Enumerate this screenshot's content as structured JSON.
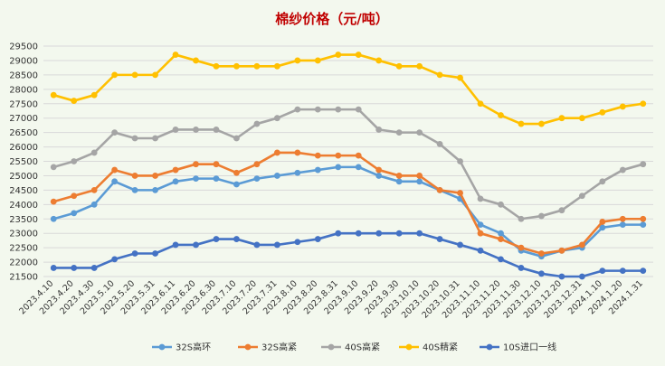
{
  "chart_data": {
    "type": "line",
    "title": "棉纱价格（元/吨）",
    "xlabel": "",
    "ylabel": "",
    "ylim": [
      21500,
      29500
    ],
    "y_ticks": [
      21500,
      22000,
      22500,
      23000,
      23500,
      24000,
      24500,
      25000,
      25500,
      26000,
      26500,
      27000,
      27500,
      28000,
      28500,
      29000,
      29500
    ],
    "grid": true,
    "legend_position": "bottom",
    "categories": [
      "2023.4.10",
      "2023.4.20",
      "2023.4.30",
      "2023.5.10",
      "2023.5.20",
      "2023.5.31",
      "2023.6.11",
      "2023.6.20",
      "2023.6.30",
      "2023.7.10",
      "2023.7.20",
      "2023.7.31",
      "2023.8.10",
      "2023.8.20",
      "2023.8.31",
      "2023.9.10",
      "2023.9.20",
      "2023.9.30",
      "2023.10.10",
      "2023.10.20",
      "2023.10.31",
      "2023.11.10",
      "2023.11.20",
      "2023.11.30",
      "2023.12.10",
      "2023.12.20",
      "2023.12.31",
      "2024.1.10",
      "2024.1.20",
      "2024.1.31"
    ],
    "series": [
      {
        "name": "32S高环",
        "color": "#5b9bd5",
        "values": [
          23500,
          23700,
          24000,
          24800,
          24500,
          24500,
          24800,
          24900,
          24900,
          24700,
          24900,
          25000,
          25100,
          25200,
          25300,
          25300,
          25000,
          24800,
          24800,
          24500,
          24200,
          23300,
          23000,
          22400,
          22200,
          22400,
          22500,
          23200,
          23300,
          23300
        ]
      },
      {
        "name": "32S高紧",
        "color": "#ed7d31",
        "values": [
          24100,
          24300,
          24500,
          25200,
          25000,
          25000,
          25200,
          25400,
          25400,
          25100,
          25400,
          25800,
          25800,
          25700,
          25700,
          25700,
          25200,
          25000,
          25000,
          24500,
          24400,
          23000,
          22800,
          22500,
          22300,
          22400,
          22600,
          23400,
          23500,
          23500
        ]
      },
      {
        "name": "40S高紧",
        "color": "#a5a5a5",
        "values": [
          25300,
          25500,
          25800,
          26500,
          26300,
          26300,
          26600,
          26600,
          26600,
          26300,
          26800,
          27000,
          27300,
          27300,
          27300,
          27300,
          26600,
          26500,
          26500,
          26100,
          25500,
          24200,
          24000,
          23500,
          23600,
          23800,
          24300,
          24800,
          25200,
          25400
        ]
      },
      {
        "name": "40S精紧",
        "color": "#ffc000",
        "values": [
          27800,
          27600,
          27800,
          28500,
          28500,
          28500,
          29200,
          29000,
          28800,
          28800,
          28800,
          28800,
          29000,
          29000,
          29200,
          29200,
          29000,
          28800,
          28800,
          28500,
          28400,
          27500,
          27100,
          26800,
          26800,
          27000,
          27000,
          27200,
          27400,
          27500
        ]
      },
      {
        "name": "10S进口一线",
        "color": "#4472c4",
        "values": [
          21800,
          21800,
          21800,
          22100,
          22300,
          22300,
          22600,
          22600,
          22800,
          22800,
          22600,
          22600,
          22700,
          22800,
          23000,
          23000,
          23000,
          23000,
          23000,
          22800,
          22600,
          22400,
          22100,
          21800,
          21600,
          21500,
          21500,
          21700,
          21700,
          21700
        ]
      }
    ]
  }
}
